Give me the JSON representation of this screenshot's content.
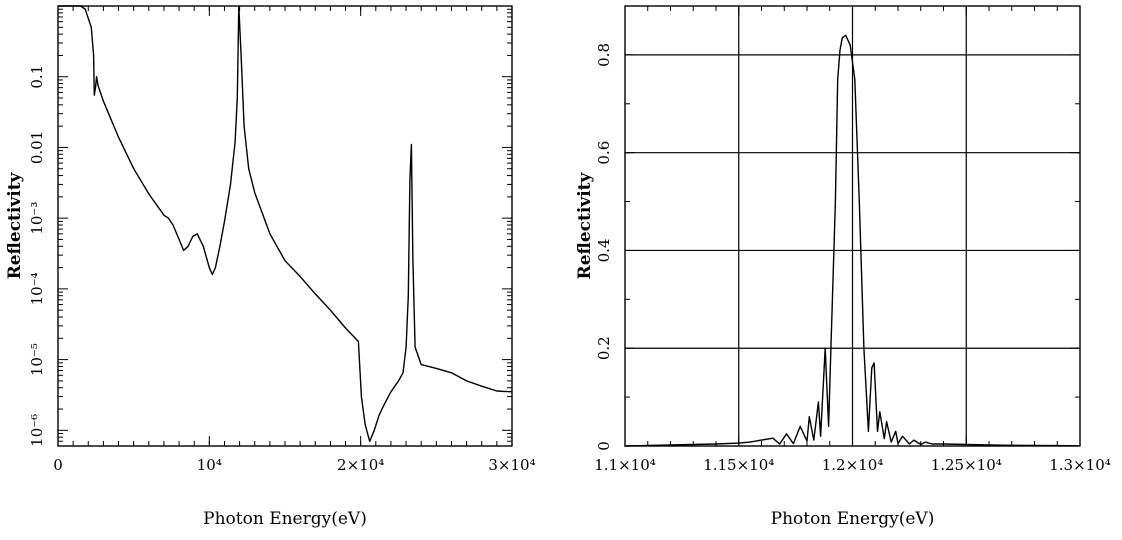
{
  "chart_data": [
    {
      "type": "line",
      "xlabel": "Photon Energy(eV)",
      "ylabel": "Reflectivity",
      "xlim": [
        0,
        30000
      ],
      "ylim": [
        6e-07,
        1
      ],
      "yscale": "log",
      "grid": false,
      "x_ticks": [
        {
          "value": 0,
          "label": "0"
        },
        {
          "value": 10000,
          "label": "10⁴"
        },
        {
          "value": 20000,
          "label": "2×10⁴"
        },
        {
          "value": 30000,
          "label": "3×10⁴"
        }
      ],
      "y_ticks": [
        {
          "value": 1e-06,
          "label": "10⁻⁶"
        },
        {
          "value": 1e-05,
          "label": "10⁻⁵"
        },
        {
          "value": 0.0001,
          "label": "10⁻⁴"
        },
        {
          "value": 0.001,
          "label": "10⁻³"
        },
        {
          "value": 0.01,
          "label": "0.01"
        },
        {
          "value": 0.1,
          "label": "0.1"
        }
      ],
      "series": [
        {
          "x": [
            0,
            1500,
            1800,
            2200,
            2350,
            2400,
            2480,
            2550,
            2650,
            2800,
            3000,
            3500,
            4000,
            5000,
            6000,
            7000,
            7300,
            7600,
            8000,
            8300,
            8600,
            8900,
            9200,
            9600,
            10000,
            10200,
            10400,
            10700,
            11000,
            11400,
            11700,
            11850,
            11950,
            12100,
            12300,
            12600,
            13000,
            14000,
            15000,
            16000,
            17000,
            18000,
            19000,
            19850,
            20050,
            20300,
            20600,
            20900,
            21200,
            21500,
            22000,
            22500,
            22800,
            23000,
            23150,
            23250,
            23350,
            23450,
            23600,
            24000,
            25000,
            26000,
            27000,
            28000,
            29000,
            30000
          ],
          "y": [
            1,
            1,
            0.9,
            0.5,
            0.2,
            0.055,
            0.07,
            0.1,
            0.075,
            0.06,
            0.045,
            0.025,
            0.014,
            0.005,
            0.0022,
            0.0011,
            0.001,
            0.0008,
            0.0005,
            0.00035,
            0.0004,
            0.00055,
            0.0006,
            0.0004,
            0.0002,
            0.00016,
            0.0002,
            0.0004,
            0.0009,
            0.003,
            0.012,
            0.05,
            1,
            0.2,
            0.02,
            0.005,
            0.0023,
            0.0006,
            0.00025,
            0.00015,
            8.5e-05,
            5e-05,
            2.8e-05,
            1.8e-05,
            3e-06,
            1.2e-06,
            7e-07,
            1e-06,
            1.6e-06,
            2.2e-06,
            3.5e-06,
            5e-06,
            6.5e-06,
            1.5e-05,
            8e-05,
            0.0035,
            0.011,
            0.00025,
            1.5e-05,
            8.5e-06,
            7.5e-06,
            6.5e-06,
            5e-06,
            4.2e-06,
            3.6e-06,
            3.5e-06
          ]
        }
      ]
    },
    {
      "type": "line",
      "xlabel": "Photon Energy(eV)",
      "ylabel": "Reflectivity",
      "xlim": [
        11000,
        13000
      ],
      "ylim": [
        0,
        0.9
      ],
      "grid": true,
      "x_ticks": [
        {
          "value": 11000,
          "label": "1.1×10⁴"
        },
        {
          "value": 11500,
          "label": "1.15×10⁴"
        },
        {
          "value": 12000,
          "label": "1.2×10⁴"
        },
        {
          "value": 12500,
          "label": "1.25×10⁴"
        },
        {
          "value": 13000,
          "label": "1.3×10⁴"
        }
      ],
      "y_ticks": [
        {
          "value": 0,
          "label": "0"
        },
        {
          "value": 0.2,
          "label": "0.2"
        },
        {
          "value": 0.4,
          "label": "0.4"
        },
        {
          "value": 0.6,
          "label": "0.6"
        },
        {
          "value": 0.8,
          "label": "0.8"
        }
      ],
      "series": [
        {
          "x": [
            11000,
            11100,
            11200,
            11300,
            11400,
            11500,
            11550,
            11600,
            11650,
            11680,
            11710,
            11740,
            11770,
            11800,
            11810,
            11830,
            11850,
            11860,
            11880,
            11895,
            11905,
            11925,
            11935,
            11945,
            11955,
            11970,
            11990,
            12010,
            12030,
            12050,
            12070,
            12085,
            12095,
            12110,
            12120,
            12140,
            12150,
            12170,
            12190,
            12200,
            12220,
            12250,
            12270,
            12300,
            12320,
            12350,
            12400,
            12500,
            12600,
            12700,
            12800,
            12900,
            13000
          ],
          "y": [
            0,
            0.001,
            0.002,
            0.003,
            0.004,
            0.006,
            0.008,
            0.012,
            0.016,
            0.004,
            0.025,
            0.005,
            0.04,
            0.01,
            0.06,
            0.012,
            0.09,
            0.02,
            0.2,
            0.04,
            0.2,
            0.5,
            0.75,
            0.81,
            0.835,
            0.84,
            0.82,
            0.75,
            0.5,
            0.2,
            0.03,
            0.16,
            0.17,
            0.03,
            0.07,
            0.015,
            0.05,
            0.008,
            0.03,
            0.005,
            0.02,
            0.004,
            0.012,
            0.003,
            0.008,
            0.004,
            0.004,
            0.003,
            0.002,
            0.0015,
            0.001,
            0.0008,
            0.0005
          ]
        }
      ]
    }
  ]
}
